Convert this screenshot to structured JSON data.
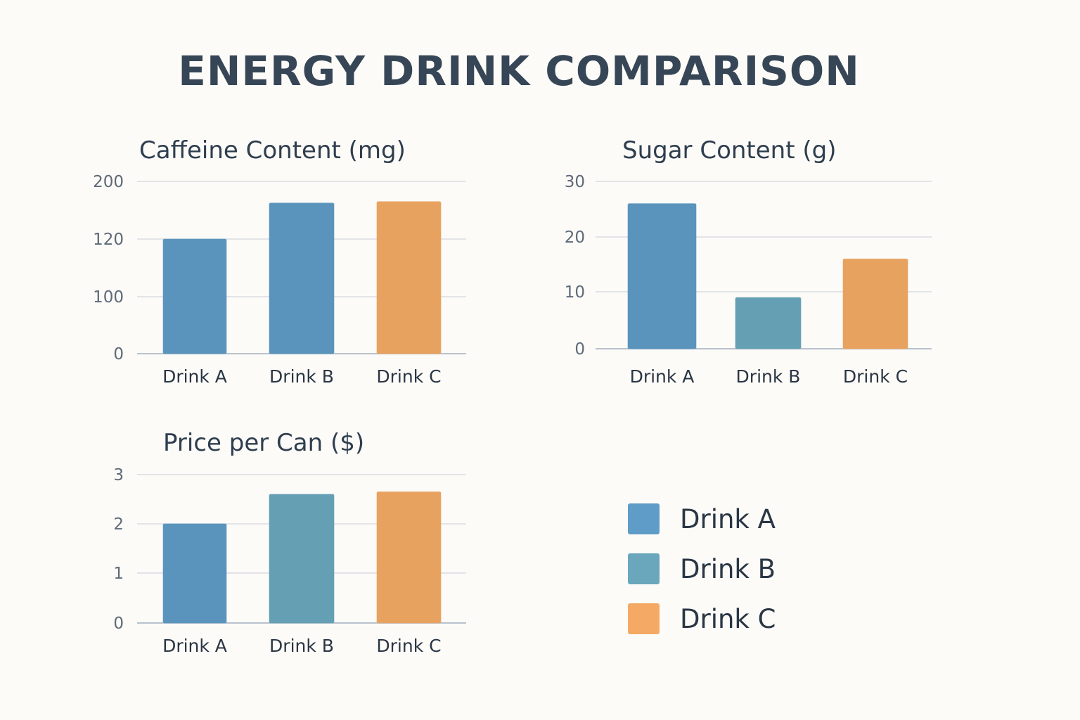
{
  "title": "ENERGY DRINK COMPARISON",
  "colors": {
    "Drink A": "#5f9cc7",
    "Drink B": "#6aa7bc",
    "Drink C": "#f4aa65",
    "caffeine_drink_b": "#5f9cc7"
  },
  "chart_data": [
    {
      "type": "bar",
      "title": "Caffeine Content (mg)",
      "categories": [
        "Drink A",
        "Drink B",
        "Drink C"
      ],
      "values": [
        120,
        170,
        172
      ],
      "bar_colors": [
        "#5f9cc7",
        "#5f9cc7",
        "#f4aa65"
      ],
      "yticks": [
        "200",
        "120",
        "100",
        "0"
      ],
      "ytick_values": [
        200,
        120,
        100,
        0
      ],
      "ylim": [
        0,
        200
      ],
      "grid": true
    },
    {
      "type": "bar",
      "title": "Sugar Content (g)",
      "categories": [
        "Drink A",
        "Drink B",
        "Drink C"
      ],
      "values": [
        26,
        9,
        16
      ],
      "bar_colors": [
        "#5f9cc7",
        "#6aa7bc",
        "#f4aa65"
      ],
      "yticks": [
        "30",
        "20",
        "10",
        "0"
      ],
      "ytick_values": [
        30,
        20,
        10,
        0
      ],
      "ylim": [
        0,
        30
      ],
      "grid": true
    },
    {
      "type": "bar",
      "title": "Price per Can ($)",
      "categories": [
        "Drink A",
        "Drink B",
        "Drink C"
      ],
      "values": [
        2.0,
        2.6,
        2.65
      ],
      "bar_colors": [
        "#5f9cc7",
        "#6aa7bc",
        "#f4aa65"
      ],
      "yticks": [
        "3",
        "2",
        "1",
        "0"
      ],
      "ytick_values": [
        3,
        2,
        1,
        0
      ],
      "ylim": [
        0,
        3
      ],
      "grid": true
    }
  ],
  "legend": {
    "placement": "bottom-right",
    "items": [
      {
        "label": "Drink A",
        "color": "#5f9cc7"
      },
      {
        "label": "Drink B",
        "color": "#6aa7bc"
      },
      {
        "label": "Drink C",
        "color": "#f4aa65"
      }
    ]
  }
}
